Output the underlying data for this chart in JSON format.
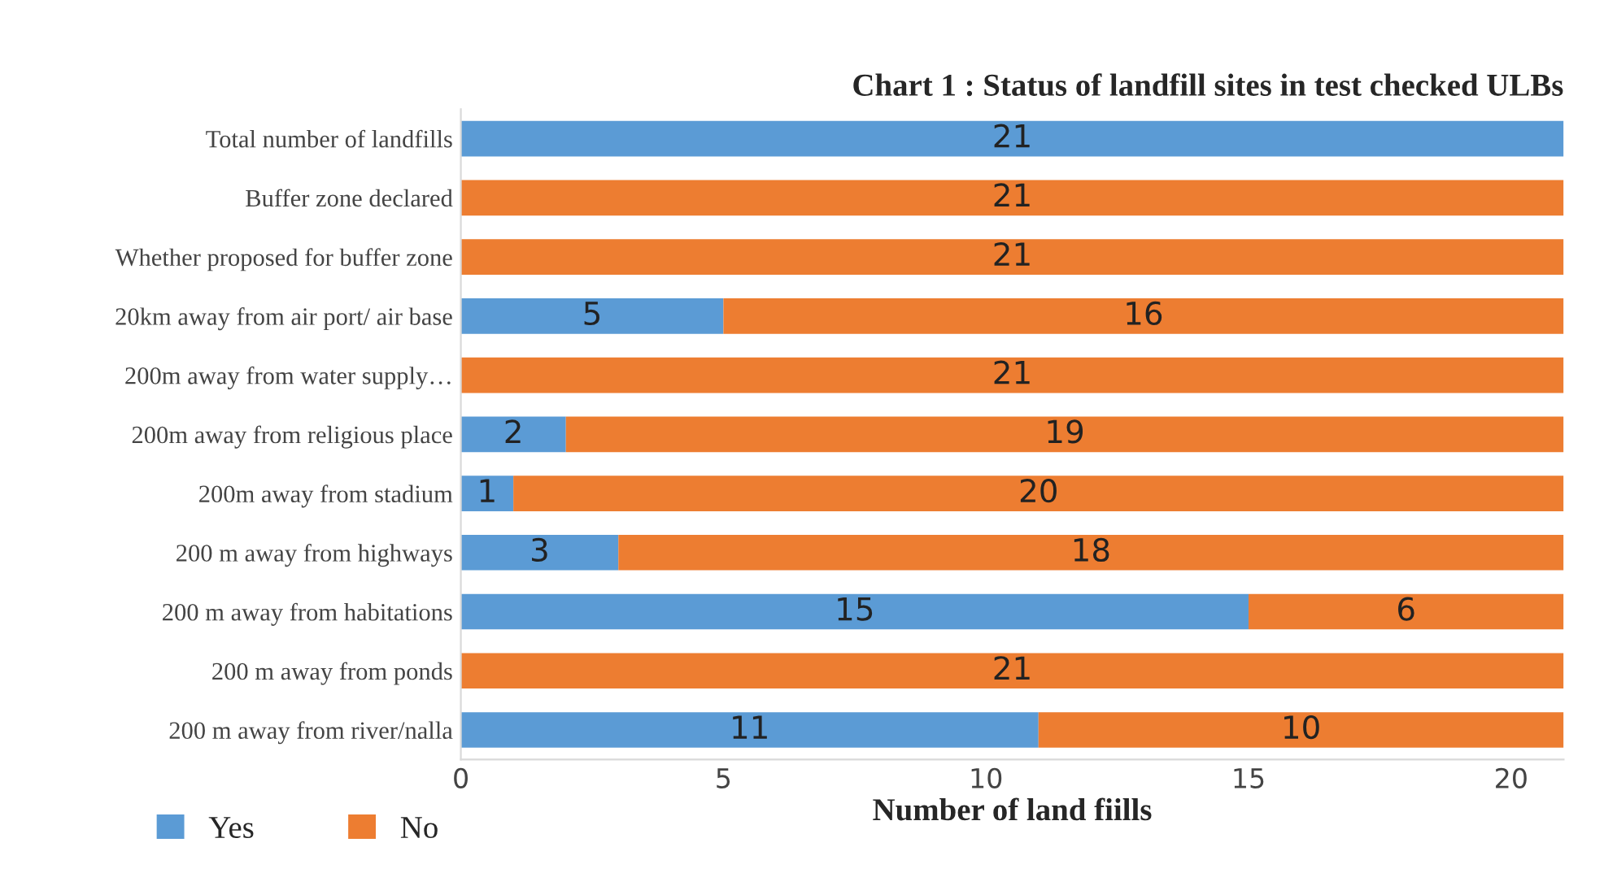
{
  "chart_data": {
    "type": "bar",
    "orientation": "horizontal",
    "stacked": true,
    "title": "Chart 1 : Status of landfill sites in test checked ULBs",
    "xlabel": "Number of land fiills",
    "categories": [
      "Total number of landfills",
      "Buffer zone declared",
      "Whether proposed for buffer zone",
      "20km away from air port/ air base",
      "200m away from water supply…",
      "200m away from religious place",
      "200m away from stadium",
      "200 m away from highways",
      "200 m away from habitations",
      "200 m away from ponds",
      "200 m away from river/nalla"
    ],
    "series": [
      {
        "name": "Yes",
        "color": "#5b9bd5",
        "values": [
          21,
          0,
          0,
          5,
          0,
          2,
          1,
          3,
          15,
          0,
          11
        ],
        "value_labels": [
          "21",
          null,
          null,
          "5",
          null,
          "2",
          "1",
          "3",
          "15",
          null,
          "11"
        ]
      },
      {
        "name": "No",
        "color": "#ed7d31",
        "values": [
          0,
          21,
          21,
          16,
          21,
          19,
          20,
          18,
          6,
          21,
          10
        ],
        "value_labels": [
          null,
          "21",
          "21",
          "16",
          "21",
          "19",
          "20",
          "18",
          "6",
          "21",
          "10"
        ]
      }
    ],
    "xlim": [
      0,
      21
    ],
    "xticks": [
      0,
      5,
      10,
      15,
      20
    ],
    "grid": false,
    "legend": "bottom left"
  }
}
